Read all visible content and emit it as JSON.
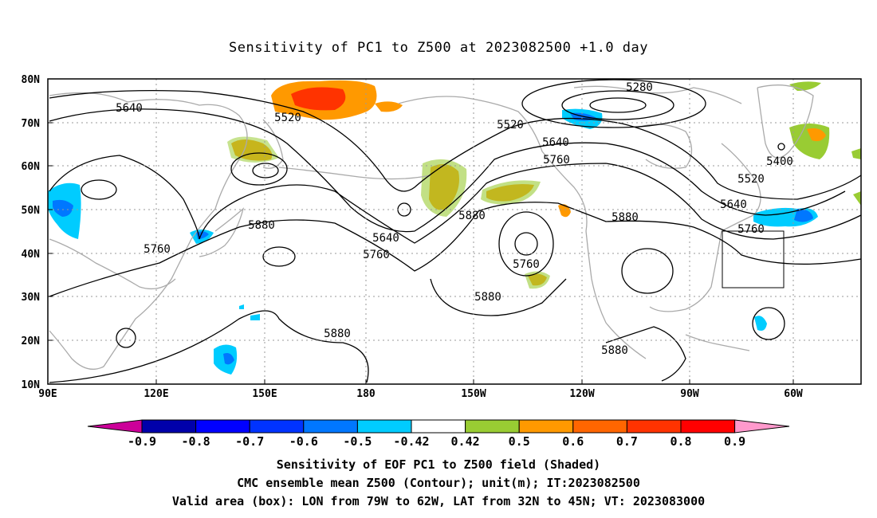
{
  "title": "Sensitivity of PC1 to Z500 at 2023082500 +1.0 day",
  "axes": {
    "lat_labels": [
      "80N",
      "70N",
      "60N",
      "50N",
      "40N",
      "30N",
      "20N",
      "10N"
    ],
    "lon_labels": [
      "90E",
      "120E",
      "150E",
      "180",
      "150W",
      "120W",
      "90W",
      "60W"
    ]
  },
  "contour_labels": [
    "5640",
    "5520",
    "5520",
    "5280",
    "5640",
    "5760",
    "5400",
    "5520",
    "5640",
    "5760",
    "5880",
    "5880",
    "5640",
    "5760",
    "5760",
    "5760",
    "5880",
    "5880",
    "5880",
    "5880"
  ],
  "colorbar": {
    "labels": [
      "-0.9",
      "-0.8",
      "-0.7",
      "-0.6",
      "-0.5",
      "-0.42",
      "0.42",
      "0.5",
      "0.6",
      "0.7",
      "0.8",
      "0.9"
    ],
    "colors": [
      "#cc0099",
      "#0000aa",
      "#0000ff",
      "#0033ff",
      "#0077ff",
      "#00ccff",
      "#ffffff",
      "#99cc33",
      "#ff9900",
      "#ff6600",
      "#ff3300",
      "#ff0000",
      "#ff99cc"
    ]
  },
  "footer": {
    "line1": "Sensitivity of EOF PC1 to Z500 field (Shaded)",
    "line2": "CMC ensemble mean Z500 (Contour); unit(m); IT:2023082500",
    "line3": "Valid area (box): LON from 79W to 62W, LAT from 32N to 45N; VT: 2023083000"
  }
}
